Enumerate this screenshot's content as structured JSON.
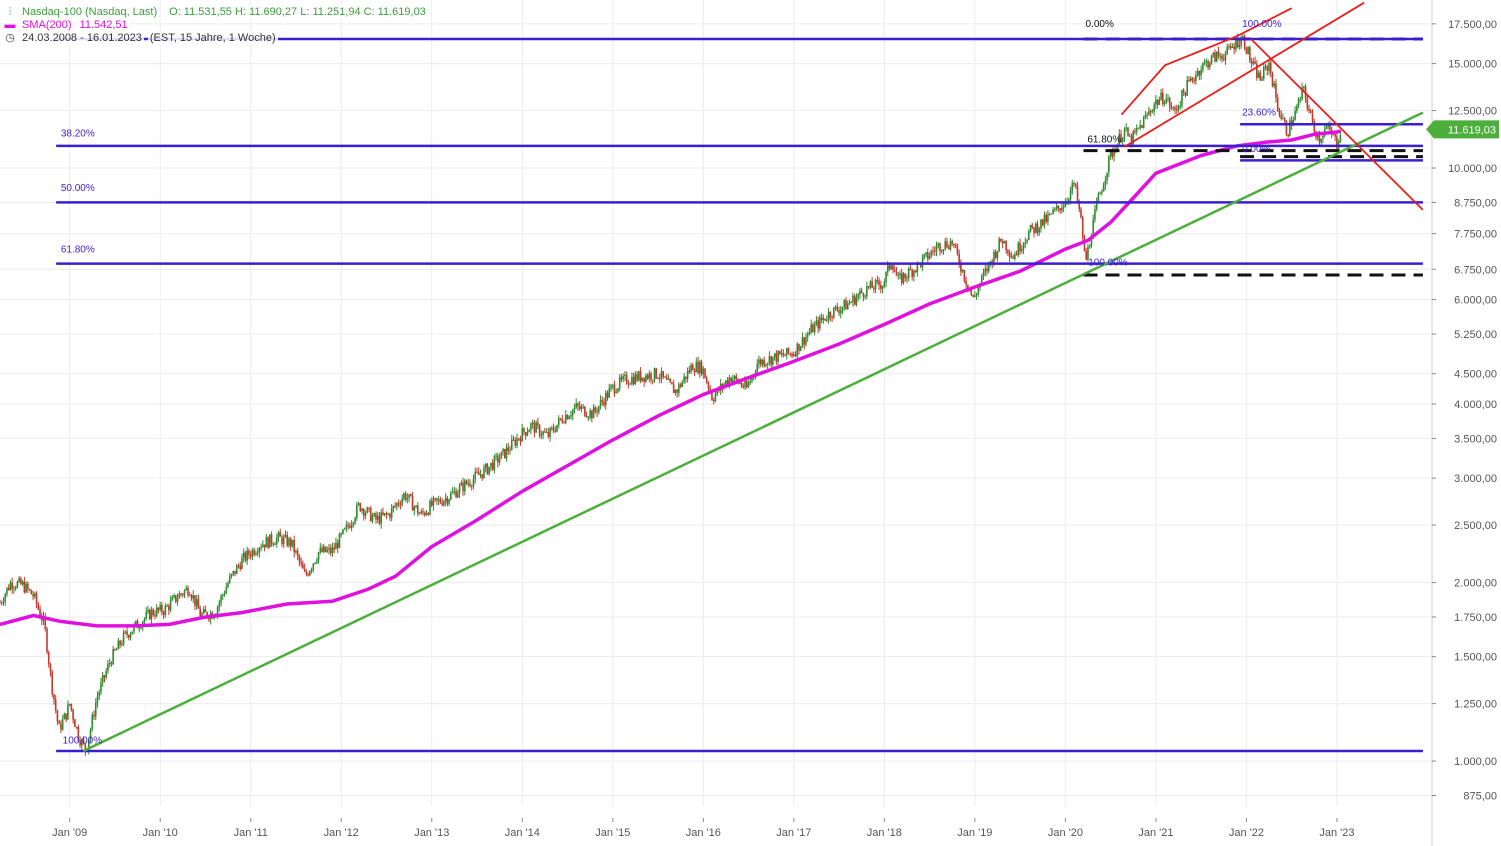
{
  "header": {
    "symbol_icon": "candlestick-icon",
    "title": "Nasdaq-100 (Nasdaq, Last)",
    "ohlc": "O: 11.531,55  H: 11.690,27  L: 11.251,94  C: 11.619,03",
    "sma_label": "SMA(200)",
    "sma_value": "11.542,51",
    "range_icon": "clock-icon",
    "range": "24.03.2008 - 16.01.2023",
    "range_meta": "(EST, 15 Jahre, 1 Woche)"
  },
  "colors": {
    "price_up": "#2e8b2e",
    "price_down": "#c0392b",
    "sma": "#e010e0",
    "fib": "#3a1fd0",
    "trend_green": "#4caf3c",
    "channel_red": "#e8201a",
    "support_dash": "#111111",
    "last_price_badge": "#4caf3c"
  },
  "chart_data": {
    "type": "line",
    "title": "Nasdaq-100 (Nasdaq, Last)",
    "xlabel": "",
    "ylabel": "",
    "yscale": "log",
    "ylim": [
      840,
      19200
    ],
    "y_ticks": [
      {
        "v": 875,
        "label": "875,00"
      },
      {
        "v": 1000,
        "label": "1.000,00"
      },
      {
        "v": 1250,
        "label": "1.250,00"
      },
      {
        "v": 1500,
        "label": "1.500,00"
      },
      {
        "v": 1750,
        "label": "1.750,00"
      },
      {
        "v": 2000,
        "label": "2.000,00"
      },
      {
        "v": 2500,
        "label": "2.500,00"
      },
      {
        "v": 3000,
        "label": "3.000,00"
      },
      {
        "v": 3500,
        "label": "3.500,00"
      },
      {
        "v": 4000,
        "label": "4.000,00"
      },
      {
        "v": 4500,
        "label": "4.500,00"
      },
      {
        "v": 5250,
        "label": "5.250,00"
      },
      {
        "v": 6000,
        "label": "6.000,00"
      },
      {
        "v": 6750,
        "label": "6.750,00"
      },
      {
        "v": 7750,
        "label": "7.750,00"
      },
      {
        "v": 8750,
        "label": "8.750,00"
      },
      {
        "v": 10000,
        "label": "10.000,00"
      },
      {
        "v": 12500,
        "label": "12.500,00"
      },
      {
        "v": 15000,
        "label": "15.000,00"
      },
      {
        "v": 17500,
        "label": "17.500,00"
      }
    ],
    "x_ticks": [
      {
        "t": 2009.0,
        "label": "Jan '09"
      },
      {
        "t": 2010.0,
        "label": "Jan '10"
      },
      {
        "t": 2011.0,
        "label": "Jan '11"
      },
      {
        "t": 2012.0,
        "label": "Jan '12"
      },
      {
        "t": 2013.0,
        "label": "Jan '13"
      },
      {
        "t": 2014.0,
        "label": "Jan '14"
      },
      {
        "t": 2015.0,
        "label": "Jan '15"
      },
      {
        "t": 2016.0,
        "label": "Jan '16"
      },
      {
        "t": 2017.0,
        "label": "Jan '17"
      },
      {
        "t": 2018.0,
        "label": "Jan '18"
      },
      {
        "t": 2019.0,
        "label": "Jan '19"
      },
      {
        "t": 2020.0,
        "label": "Jan '20"
      },
      {
        "t": 2021.0,
        "label": "Jan '21"
      },
      {
        "t": 2022.0,
        "label": "Jan '22"
      },
      {
        "t": 2023.0,
        "label": "Jan '23"
      }
    ],
    "xlim": [
      2008.23,
      2024.05
    ],
    "series": [
      {
        "name": "Nasdaq-100",
        "points": [
          [
            2008.23,
            1850
          ],
          [
            2008.35,
            2000
          ],
          [
            2008.48,
            1980
          ],
          [
            2008.6,
            1900
          ],
          [
            2008.72,
            1700
          ],
          [
            2008.8,
            1350
          ],
          [
            2008.88,
            1130
          ],
          [
            2008.96,
            1200
          ],
          [
            2009.0,
            1250
          ],
          [
            2009.1,
            1100
          ],
          [
            2009.18,
            1040
          ],
          [
            2009.3,
            1280
          ],
          [
            2009.45,
            1480
          ],
          [
            2009.6,
            1620
          ],
          [
            2009.75,
            1700
          ],
          [
            2009.9,
            1780
          ],
          [
            2010.05,
            1800
          ],
          [
            2010.2,
            1900
          ],
          [
            2010.32,
            1960
          ],
          [
            2010.45,
            1760
          ],
          [
            2010.6,
            1780
          ],
          [
            2010.75,
            2000
          ],
          [
            2010.9,
            2180
          ],
          [
            2011.1,
            2320
          ],
          [
            2011.3,
            2380
          ],
          [
            2011.45,
            2330
          ],
          [
            2011.6,
            2050
          ],
          [
            2011.75,
            2250
          ],
          [
            2011.9,
            2260
          ],
          [
            2012.05,
            2450
          ],
          [
            2012.2,
            2700
          ],
          [
            2012.38,
            2550
          ],
          [
            2012.52,
            2600
          ],
          [
            2012.7,
            2820
          ],
          [
            2012.88,
            2600
          ],
          [
            2013.0,
            2700
          ],
          [
            2013.2,
            2800
          ],
          [
            2013.4,
            2950
          ],
          [
            2013.6,
            3100
          ],
          [
            2013.8,
            3300
          ],
          [
            2013.99,
            3560
          ],
          [
            2014.1,
            3680
          ],
          [
            2014.28,
            3530
          ],
          [
            2014.45,
            3800
          ],
          [
            2014.6,
            3950
          ],
          [
            2014.78,
            3850
          ],
          [
            2014.99,
            4250
          ],
          [
            2015.15,
            4400
          ],
          [
            2015.3,
            4450
          ],
          [
            2015.5,
            4500
          ],
          [
            2015.62,
            4300
          ],
          [
            2015.7,
            4200
          ],
          [
            2015.88,
            4650
          ],
          [
            2015.99,
            4600
          ],
          [
            2016.1,
            4100
          ],
          [
            2016.3,
            4450
          ],
          [
            2016.48,
            4250
          ],
          [
            2016.6,
            4700
          ],
          [
            2016.8,
            4800
          ],
          [
            2016.99,
            4880
          ],
          [
            2017.2,
            5350
          ],
          [
            2017.4,
            5700
          ],
          [
            2017.6,
            5900
          ],
          [
            2017.8,
            6250
          ],
          [
            2017.99,
            6400
          ],
          [
            2018.08,
            7000
          ],
          [
            2018.15,
            6450
          ],
          [
            2018.35,
            6800
          ],
          [
            2018.6,
            7400
          ],
          [
            2018.75,
            7500
          ],
          [
            2018.88,
            6600
          ],
          [
            2018.98,
            6000
          ],
          [
            2019.1,
            6600
          ],
          [
            2019.3,
            7600
          ],
          [
            2019.42,
            7100
          ],
          [
            2019.6,
            7800
          ],
          [
            2019.8,
            8200
          ],
          [
            2019.99,
            8750
          ],
          [
            2020.1,
            9400
          ],
          [
            2020.18,
            8000
          ],
          [
            2020.22,
            6900
          ],
          [
            2020.35,
            8700
          ],
          [
            2020.5,
            10500
          ],
          [
            2020.65,
            11600
          ],
          [
            2020.72,
            11100
          ],
          [
            2020.85,
            11900
          ],
          [
            2020.99,
            12900
          ],
          [
            2021.1,
            13200
          ],
          [
            2021.2,
            12400
          ],
          [
            2021.35,
            13800
          ],
          [
            2021.5,
            14800
          ],
          [
            2021.65,
            15400
          ],
          [
            2021.78,
            15600
          ],
          [
            2021.9,
            16400
          ],
          [
            2021.97,
            16500
          ],
          [
            2022.05,
            15100
          ],
          [
            2022.15,
            14100
          ],
          [
            2022.25,
            15000
          ],
          [
            2022.35,
            12600
          ],
          [
            2022.45,
            11500
          ],
          [
            2022.55,
            12500
          ],
          [
            2022.63,
            13600
          ],
          [
            2022.72,
            12000
          ],
          [
            2022.8,
            11200
          ],
          [
            2022.88,
            11700
          ],
          [
            2022.94,
            11400
          ],
          [
            2023.0,
            11000
          ],
          [
            2023.04,
            11619
          ]
        ]
      },
      {
        "name": "SMA(200)",
        "points": [
          [
            2008.23,
            1700
          ],
          [
            2008.6,
            1760
          ],
          [
            2008.9,
            1720
          ],
          [
            2009.3,
            1690
          ],
          [
            2009.7,
            1690
          ],
          [
            2010.1,
            1700
          ],
          [
            2010.5,
            1750
          ],
          [
            2010.9,
            1780
          ],
          [
            2011.4,
            1840
          ],
          [
            2011.9,
            1860
          ],
          [
            2012.3,
            1950
          ],
          [
            2012.6,
            2050
          ],
          [
            2013.0,
            2300
          ],
          [
            2013.5,
            2550
          ],
          [
            2014.0,
            2850
          ],
          [
            2014.5,
            3150
          ],
          [
            2015.0,
            3480
          ],
          [
            2015.5,
            3820
          ],
          [
            2016.0,
            4150
          ],
          [
            2016.5,
            4430
          ],
          [
            2017.0,
            4720
          ],
          [
            2017.5,
            5050
          ],
          [
            2018.0,
            5450
          ],
          [
            2018.5,
            5900
          ],
          [
            2019.0,
            6300
          ],
          [
            2019.5,
            6700
          ],
          [
            2020.0,
            7300
          ],
          [
            2020.25,
            7550
          ],
          [
            2020.5,
            8100
          ],
          [
            2020.75,
            8900
          ],
          [
            2021.0,
            9800
          ],
          [
            2021.5,
            10500
          ],
          [
            2021.9,
            10900
          ],
          [
            2022.2,
            11050
          ],
          [
            2022.5,
            11150
          ],
          [
            2022.75,
            11400
          ],
          [
            2023.0,
            11500
          ],
          [
            2023.04,
            11542
          ]
        ]
      }
    ],
    "trend_lines": [
      {
        "color_key": "trend_green",
        "points": [
          [
            2009.15,
            1040
          ],
          [
            2023.95,
            12400
          ]
        ]
      },
      {
        "color_key": "channel_red",
        "points": [
          [
            2020.65,
            10850
          ],
          [
            2023.3,
            19000
          ]
        ]
      },
      {
        "color_key": "channel_red",
        "points": [
          [
            2020.62,
            12300
          ],
          [
            2021.1,
            14900
          ],
          [
            2021.9,
            16700
          ],
          [
            2022.5,
            18600
          ]
        ]
      },
      {
        "color_key": "channel_red",
        "points": [
          [
            2022.05,
            16500
          ],
          [
            2023.95,
            8500
          ]
        ]
      }
    ],
    "horizontal_lines": [
      {
        "y": 16500,
        "x0": 2008.85,
        "x1": 2023.95,
        "color_key": "fib",
        "style": "solid"
      },
      {
        "y": 16500,
        "x0": 2020.2,
        "x1": 2023.95,
        "color_key": "fib",
        "style": "dash"
      },
      {
        "y": 10900,
        "x0": 2008.85,
        "x1": 2023.95,
        "color_key": "fib",
        "style": "solid"
      },
      {
        "y": 8750,
        "x0": 2008.85,
        "x1": 2023.95,
        "color_key": "fib",
        "style": "solid"
      },
      {
        "y": 6900,
        "x0": 2008.85,
        "x1": 2023.95,
        "color_key": "fib",
        "style": "solid"
      },
      {
        "y": 1040,
        "x0": 2008.85,
        "x1": 2023.95,
        "color_key": "fib",
        "style": "solid"
      },
      {
        "y": 11850,
        "x0": 2021.93,
        "x1": 2023.95,
        "color_key": "fib",
        "style": "solid"
      },
      {
        "y": 10300,
        "x0": 2021.93,
        "x1": 2023.95,
        "color_key": "fib",
        "style": "solid"
      },
      {
        "y": 10700,
        "x0": 2020.2,
        "x1": 2023.95,
        "color_key": "support_dash",
        "style": "dash"
      },
      {
        "y": 10450,
        "x0": 2021.93,
        "x1": 2023.95,
        "color_key": "support_dash",
        "style": "dash"
      },
      {
        "y": 6600,
        "x0": 2020.2,
        "x1": 2023.95,
        "color_key": "support_dash",
        "style": "dash"
      }
    ],
    "annotations": [
      {
        "text": "0.00%",
        "x": 2020.2,
        "y": 17300,
        "color": "#111111"
      },
      {
        "text": "100.00%",
        "x": 2021.93,
        "y": 17300,
        "color": "#3a1fd0"
      },
      {
        "text": "38.20%",
        "x": 2008.88,
        "y": 11300,
        "color": "#3a1fd0"
      },
      {
        "text": "50.00%",
        "x": 2008.88,
        "y": 9150,
        "color": "#3a1fd0"
      },
      {
        "text": "61.80%",
        "x": 2008.88,
        "y": 7200,
        "color": "#3a1fd0"
      },
      {
        "text": "100.00%",
        "x": 2008.9,
        "y": 1070,
        "color": "#3a1fd0"
      },
      {
        "text": "61.80%",
        "x": 2020.22,
        "y": 11050,
        "color": "#111111"
      },
      {
        "text": "100.00%",
        "x": 2020.23,
        "y": 6850,
        "color": "#3a1fd0"
      },
      {
        "text": "23.60%",
        "x": 2021.93,
        "y": 12250,
        "color": "#3a1fd0"
      },
      {
        "text": "0.00%",
        "x": 2021.93,
        "y": 10650,
        "color": "#3a1fd0"
      }
    ],
    "last_price": {
      "value": 11619.03,
      "label": "11.619,03"
    }
  }
}
